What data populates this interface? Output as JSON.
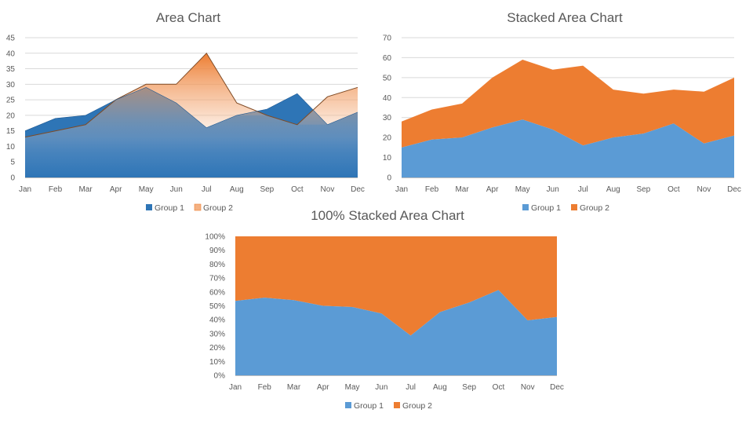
{
  "chart_data": [
    {
      "type": "area",
      "title": "Area Chart",
      "categories": [
        "Jan",
        "Feb",
        "Mar",
        "Apr",
        "May",
        "Jun",
        "Jul",
        "Aug",
        "Sep",
        "Oct",
        "Nov",
        "Dec"
      ],
      "series": [
        {
          "name": "Group 1",
          "values": [
            15,
            19,
            20,
            25,
            29,
            24,
            16,
            20,
            22,
            27,
            17,
            21
          ],
          "color": "#2e75b6"
        },
        {
          "name": "Group 2",
          "values": [
            13,
            15,
            17,
            25,
            30,
            30,
            40,
            24,
            20,
            17,
            26,
            29
          ],
          "color": "#ed7d31"
        }
      ],
      "ylim": [
        0,
        45
      ],
      "yticks": [
        0,
        5,
        10,
        15,
        20,
        25,
        30,
        35,
        40,
        45
      ],
      "ytick_labels": [
        "0",
        "5",
        "10",
        "15",
        "20",
        "25",
        "30",
        "35",
        "40",
        "45"
      ],
      "grid": true,
      "legend": "bottom"
    },
    {
      "type": "area",
      "stacked": true,
      "title": "Stacked Area Chart",
      "categories": [
        "Jan",
        "Feb",
        "Mar",
        "Apr",
        "May",
        "Jun",
        "Jul",
        "Aug",
        "Sep",
        "Oct",
        "Nov",
        "Dec"
      ],
      "series": [
        {
          "name": "Group 1",
          "values": [
            15,
            19,
            20,
            25,
            29,
            24,
            16,
            20,
            22,
            27,
            17,
            21
          ],
          "color": "#5b9bd5"
        },
        {
          "name": "Group 2",
          "values": [
            13,
            15,
            17,
            25,
            30,
            30,
            40,
            24,
            20,
            17,
            26,
            29
          ],
          "color": "#ed7d31"
        }
      ],
      "ylim": [
        0,
        70
      ],
      "yticks": [
        0,
        10,
        20,
        30,
        40,
        50,
        60,
        70
      ],
      "ytick_labels": [
        "0",
        "10",
        "20",
        "30",
        "40",
        "50",
        "60",
        "70"
      ],
      "grid": true,
      "legend": "bottom"
    },
    {
      "type": "area",
      "stacked": "percent",
      "title": "100% Stacked Area Chart",
      "categories": [
        "Jan",
        "Feb",
        "Mar",
        "Apr",
        "May",
        "Jun",
        "Jul",
        "Aug",
        "Sep",
        "Oct",
        "Nov",
        "Dec"
      ],
      "series": [
        {
          "name": "Group 1",
          "values": [
            15,
            19,
            20,
            25,
            29,
            24,
            16,
            20,
            22,
            27,
            17,
            21
          ],
          "color": "#5b9bd5"
        },
        {
          "name": "Group 2",
          "values": [
            13,
            15,
            17,
            25,
            30,
            30,
            40,
            24,
            20,
            17,
            26,
            29
          ],
          "color": "#ed7d31"
        }
      ],
      "ylim": [
        0,
        100
      ],
      "yticks": [
        0,
        10,
        20,
        30,
        40,
        50,
        60,
        70,
        80,
        90,
        100
      ],
      "ytick_labels": [
        "0%",
        "10%",
        "20%",
        "30%",
        "40%",
        "50%",
        "60%",
        "70%",
        "80%",
        "90%",
        "100%"
      ],
      "grid": false,
      "legend": "bottom"
    }
  ]
}
